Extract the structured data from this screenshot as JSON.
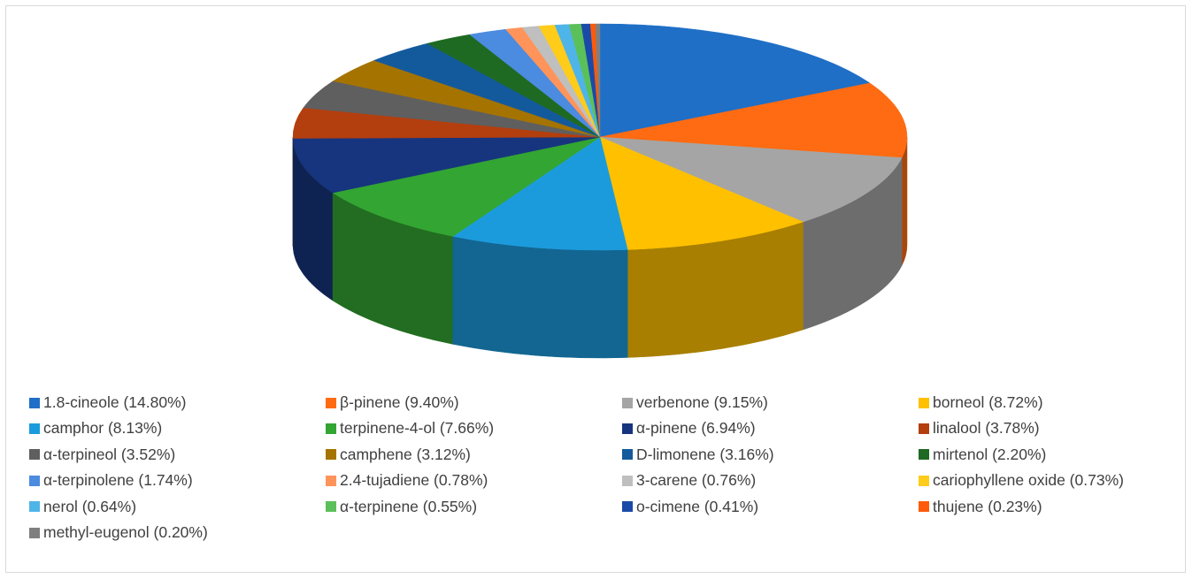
{
  "chart_data": {
    "type": "pie",
    "title": "",
    "legend_position": "bottom",
    "slices": [
      {
        "label": "1.8-cineole (14.80%)",
        "value": 14.8,
        "color": "#1F6FC6"
      },
      {
        "label": "β-pinene (9.40%)",
        "value": 9.4,
        "color": "#FF6B12"
      },
      {
        "label": "verbenone (9.15%)",
        "value": 9.15,
        "color": "#A5A5A5"
      },
      {
        "label": "borneol (8.72%)",
        "value": 8.72,
        "color": "#FFC000"
      },
      {
        "label": "camphor (8.13%)",
        "value": 8.13,
        "color": "#1C9BDC"
      },
      {
        "label": "terpinene-4-ol (7.66%)",
        "value": 7.66,
        "color": "#33A532"
      },
      {
        "label": "α-pinene (6.94%)",
        "value": 6.94,
        "color": "#16357E"
      },
      {
        "label": "linalool (3.78%)",
        "value": 3.78,
        "color": "#B33E0E"
      },
      {
        "label": "α-terpineol (3.52%)",
        "value": 3.52,
        "color": "#5F5F5F"
      },
      {
        "label": "camphene (3.12%)",
        "value": 3.12,
        "color": "#A57300"
      },
      {
        "label": "D-limonene (3.16%)",
        "value": 3.16,
        "color": "#135A9C"
      },
      {
        "label": "mirtenol (2.20%)",
        "value": 2.2,
        "color": "#1E6A22"
      },
      {
        "label": "α-terpinolene (1.74%)",
        "value": 1.74,
        "color": "#4B8BE0"
      },
      {
        "label": "2.4-tujadiene (0.78%)",
        "value": 0.78,
        "color": "#FF945A"
      },
      {
        "label": "3-carene (0.76%)",
        "value": 0.76,
        "color": "#BFBFBF"
      },
      {
        "label": "cariophyllene oxide (0.73%)",
        "value": 0.73,
        "color": "#FFCC1A"
      },
      {
        "label": "nerol (0.64%)",
        "value": 0.64,
        "color": "#4FB4E8"
      },
      {
        "label": "α-terpinene (0.55%)",
        "value": 0.55,
        "color": "#5BC05A"
      },
      {
        "label": "o-cimene (0.41%)",
        "value": 0.41,
        "color": "#1A4AA8"
      },
      {
        "label": "thujene (0.23%)",
        "value": 0.23,
        "color": "#FF5A0A"
      },
      {
        "label": "methyl-eugenol (0.20%)",
        "value": 0.2,
        "color": "#7F7F7F"
      }
    ]
  }
}
